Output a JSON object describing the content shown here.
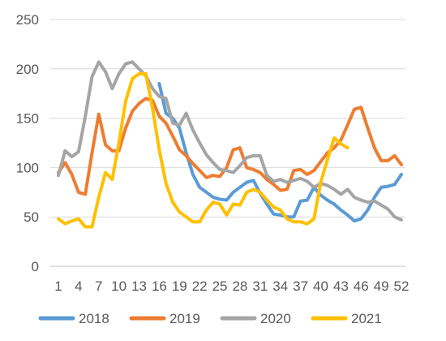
{
  "chart_data": {
    "type": "line",
    "title": "",
    "xlabel": "",
    "ylabel": "",
    "ylim": [
      0,
      250
    ],
    "y_ticks": [
      0,
      50,
      100,
      150,
      200,
      250
    ],
    "x_ticks": [
      1,
      4,
      7,
      10,
      13,
      16,
      19,
      22,
      25,
      28,
      31,
      34,
      37,
      40,
      43,
      46,
      49,
      52
    ],
    "x_range": [
      1,
      52
    ],
    "grid": "horizontal",
    "legend_position": "bottom",
    "series": [
      {
        "name": "2018",
        "color": "#5B9BD5",
        "x": [
          16,
          17,
          18,
          19,
          20,
          21,
          22,
          23,
          24,
          25,
          26,
          27,
          28,
          29,
          30,
          31,
          32,
          33,
          34,
          35,
          36,
          37,
          38,
          39,
          40,
          41,
          42,
          43,
          44,
          45,
          46,
          47,
          48,
          49,
          50,
          51,
          52
        ],
        "values": [
          185,
          155,
          150,
          140,
          115,
          93,
          80,
          75,
          70,
          68,
          67,
          75,
          80,
          85,
          87,
          74,
          63,
          53,
          52,
          50,
          50,
          66,
          67,
          80,
          72,
          67,
          63,
          57,
          52,
          46,
          48,
          57,
          70,
          80,
          81,
          83,
          93
        ]
      },
      {
        "name": "2019",
        "color": "#ED7D31",
        "x": [
          1,
          2,
          3,
          4,
          5,
          6,
          7,
          8,
          9,
          10,
          11,
          12,
          13,
          14,
          15,
          16,
          17,
          18,
          19,
          20,
          21,
          22,
          23,
          24,
          25,
          26,
          27,
          28,
          29,
          30,
          31,
          32,
          33,
          34,
          35,
          36,
          37,
          38,
          39,
          40,
          41,
          42,
          43,
          44,
          45,
          46,
          47,
          48,
          49,
          50,
          51,
          52
        ],
        "values": [
          95,
          105,
          93,
          75,
          73,
          115,
          154,
          123,
          117,
          117,
          140,
          157,
          165,
          170,
          168,
          152,
          145,
          132,
          118,
          112,
          104,
          97,
          90,
          92,
          91,
          100,
          118,
          120,
          100,
          98,
          95,
          88,
          83,
          77,
          78,
          97,
          98,
          93,
          97,
          106,
          115,
          120,
          128,
          143,
          159,
          161,
          140,
          120,
          107,
          107,
          112,
          103
        ]
      },
      {
        "name": "2020",
        "color": "#A5A5A5",
        "x": [
          1,
          2,
          3,
          4,
          5,
          6,
          7,
          8,
          9,
          10,
          11,
          12,
          13,
          14,
          15,
          16,
          17,
          18,
          19,
          20,
          21,
          22,
          23,
          24,
          25,
          26,
          27,
          28,
          29,
          30,
          31,
          32,
          33,
          34,
          35,
          36,
          37,
          38,
          39,
          40,
          41,
          42,
          43,
          44,
          45,
          46,
          47,
          48,
          49,
          50,
          51,
          52
        ],
        "values": [
          92,
          117,
          111,
          116,
          152,
          192,
          207,
          197,
          180,
          195,
          205,
          207,
          200,
          193,
          180,
          172,
          170,
          145,
          143,
          155,
          138,
          125,
          113,
          105,
          98,
          97,
          95,
          102,
          110,
          112,
          112,
          92,
          86,
          88,
          85,
          87,
          89,
          86,
          80,
          84,
          82,
          78,
          73,
          78,
          70,
          67,
          65,
          66,
          62,
          58,
          50,
          47
        ]
      },
      {
        "name": "2021",
        "color": "#FFC000",
        "x": [
          1,
          2,
          3,
          4,
          5,
          6,
          7,
          8,
          9,
          10,
          11,
          12,
          13,
          14,
          15,
          16,
          17,
          18,
          19,
          20,
          21,
          22,
          23,
          24,
          25,
          26,
          27,
          28,
          29,
          30,
          31,
          32,
          33,
          34,
          35,
          36,
          37,
          38,
          39,
          40,
          41,
          42,
          43,
          44
        ],
        "values": [
          48,
          43,
          46,
          48,
          40,
          40,
          70,
          95,
          88,
          125,
          167,
          190,
          195,
          195,
          160,
          118,
          84,
          65,
          55,
          50,
          45,
          45,
          57,
          65,
          63,
          52,
          63,
          62,
          75,
          78,
          75,
          67,
          60,
          57,
          48,
          45,
          45,
          43,
          48,
          85,
          108,
          130,
          124,
          120
        ]
      }
    ]
  }
}
